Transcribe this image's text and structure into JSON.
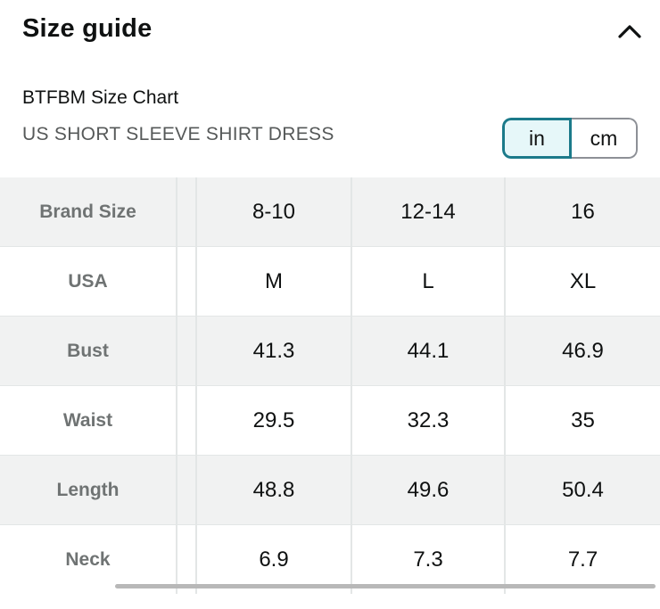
{
  "header": {
    "title": "Size guide",
    "collapse_icon": "chevron-up-icon"
  },
  "chart": {
    "brand_chart_label": "BTFBM Size Chart",
    "subtitle": "US SHORT SLEEVE SHIRT DRESS"
  },
  "units": {
    "in_label": "in",
    "cm_label": "cm",
    "selected": "in",
    "accent_color": "#1b7a8a"
  },
  "table": {
    "rows": [
      {
        "label": "Brand Size",
        "values": [
          "8-10",
          "12-14",
          "16"
        ]
      },
      {
        "label": "USA",
        "values": [
          "M",
          "L",
          "XL"
        ]
      },
      {
        "label": "Bust",
        "values": [
          "41.3",
          "44.1",
          "46.9"
        ]
      },
      {
        "label": "Waist",
        "values": [
          "29.5",
          "32.3",
          "35"
        ]
      },
      {
        "label": "Length",
        "values": [
          "48.8",
          "49.6",
          "50.4"
        ]
      },
      {
        "label": "Neck",
        "values": [
          "6.9",
          "7.3",
          "7.7"
        ]
      }
    ]
  }
}
